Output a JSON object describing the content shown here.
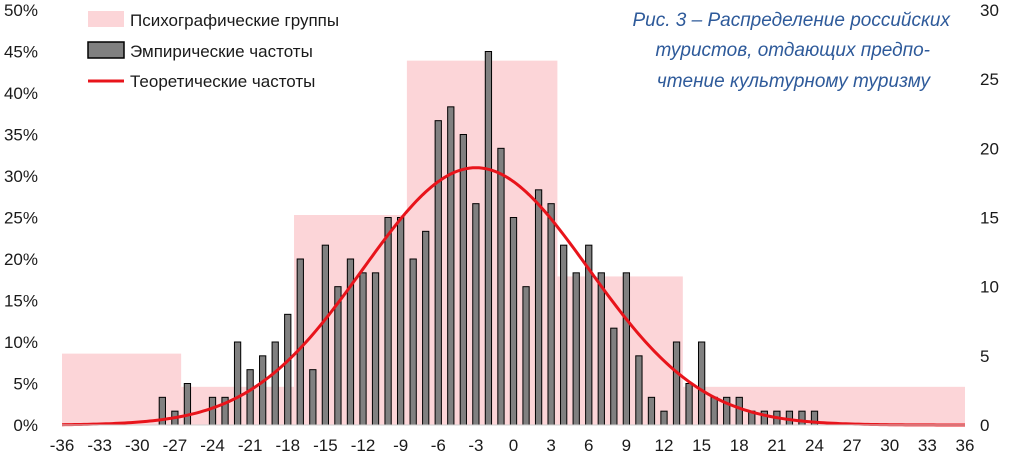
{
  "chart_data": {
    "type": "bar",
    "title_lines": [
      "Рис. 3 – Распределение российских",
      "туристов, отдающих предпо-",
      "чтение культурному туризму"
    ],
    "x_ticks": [
      "-36",
      "-33",
      "-30",
      "-27",
      "-24",
      "-21",
      "-18",
      "-15",
      "-12",
      "-9",
      "-6",
      "-3",
      "0",
      "3",
      "6",
      "9",
      "12",
      "15",
      "18",
      "21",
      "24",
      "27",
      "30",
      "33",
      "36"
    ],
    "xlim": [
      -36,
      36
    ],
    "y_left": {
      "ticks": [
        "0%",
        "5%",
        "10%",
        "15%",
        "20%",
        "25%",
        "30%",
        "35%",
        "40%",
        "45%",
        "50%"
      ],
      "ylim": [
        0,
        50
      ]
    },
    "y_right": {
      "ticks": [
        "0",
        "5",
        "10",
        "15",
        "20",
        "25",
        "30"
      ],
      "ylim": [
        0,
        30
      ]
    },
    "legend": [
      {
        "label": "Психографические группы",
        "color": "#fcd5d8"
      },
      {
        "label": "Эмпирические частоты",
        "color": "#808080"
      },
      {
        "label": "Теоретические частоты",
        "color": "#e8141b"
      }
    ],
    "series": [
      {
        "name": "Психографические группы",
        "axis": "left",
        "groups": [
          {
            "x_start": -36,
            "x_end": -26.5,
            "value": 8.6
          },
          {
            "x_start": -26.5,
            "x_end": -17.5,
            "value": 4.6
          },
          {
            "x_start": -17.5,
            "x_end": -8.5,
            "value": 25.3
          },
          {
            "x_start": -8.5,
            "x_end": 3.5,
            "value": 43.9
          },
          {
            "x_start": 3.5,
            "x_end": 13.5,
            "value": 17.9
          },
          {
            "x_start": 13.5,
            "x_end": 36,
            "value": 4.6
          }
        ]
      },
      {
        "name": "Эмпирические частоты",
        "axis": "right",
        "x": [
          -28,
          -27,
          -26,
          -24,
          -23,
          -22,
          -21,
          -20,
          -19,
          -18,
          -17,
          -16,
          -15,
          -14,
          -13,
          -12,
          -11,
          -10,
          -9,
          -8,
          -7,
          -6,
          -5,
          -4,
          -3,
          -2,
          -1,
          0,
          1,
          2,
          3,
          4,
          5,
          6,
          7,
          8,
          9,
          10,
          11,
          12,
          13,
          14,
          15,
          16,
          17,
          18,
          19,
          20,
          21,
          22,
          23,
          24
        ],
        "values": [
          2,
          1,
          3,
          2,
          2,
          6,
          4,
          5,
          6,
          8,
          12,
          4,
          13,
          10,
          12,
          11,
          11,
          15,
          15,
          12,
          14,
          22,
          23,
          21,
          16,
          27,
          20,
          15,
          10,
          17,
          16,
          13,
          11,
          13,
          11,
          7,
          11,
          5,
          2,
          1,
          6,
          3,
          6,
          2,
          2,
          2,
          1,
          1,
          1,
          1,
          1,
          1
        ]
      },
      {
        "name": "Теоретические частоты",
        "axis": "right",
        "type": "line",
        "distribution": "normal",
        "mean": -3.0,
        "sd": 9.0,
        "peak": 18.6
      }
    ]
  }
}
